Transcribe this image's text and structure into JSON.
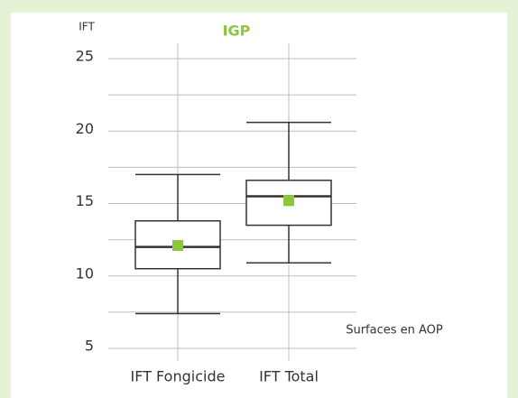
{
  "chart_data": {
    "type": "box",
    "title": "IGP",
    "y_label": "IFT",
    "annotation": "Surfaces en AOP",
    "categories": [
      "IFT Fongicide",
      "IFT Total"
    ],
    "boxes": [
      {
        "min": 7.4,
        "q1": 10.5,
        "median": 12,
        "q3": 13.8,
        "max": 17,
        "mean": 12.1
      },
      {
        "min": 10.9,
        "q1": 13.5,
        "median": 15.5,
        "q3": 16.6,
        "max": 20.6,
        "mean": 15.2
      }
    ],
    "box_color": "#333333",
    "mean_color": "#8dc63f",
    "title_color": "#8dc63f",
    "ylim": [
      5,
      25
    ],
    "yticks": [
      5,
      10,
      15,
      20,
      25
    ],
    "grid_yticks": [
      5,
      7.5,
      10,
      12.5,
      15,
      17.5,
      20,
      22.5,
      25
    ],
    "grid": true
  }
}
